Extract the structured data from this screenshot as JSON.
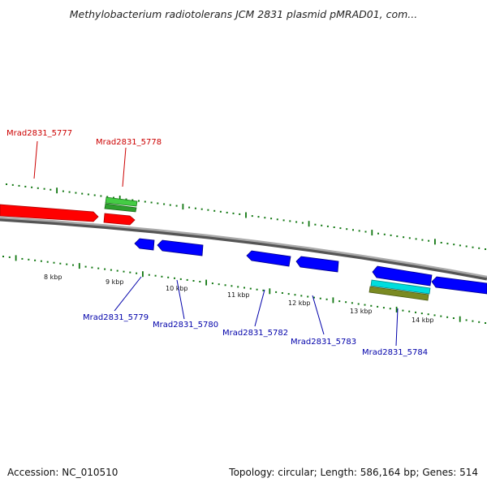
{
  "title": "Methylobacterium radiotolerans JCM 2831 plasmid pMRAD01, com...",
  "footer": {
    "accession": "Accession: NC_010510",
    "summary": "Topology: circular; Length: 586,164 bp; Genes: 514"
  },
  "colors": {
    "forward_gene": "#ff0000",
    "reverse_gene": "#0000ff",
    "rna_green": "#33aa33",
    "cyan_feature": "#00cccc",
    "olive_feature": "#778822",
    "backbone": "#888888",
    "ticks": "#117711",
    "label_forward": "#cc0000",
    "label_reverse": "#0000aa"
  },
  "scale_labels": [
    "8 kbp",
    "9 kbp",
    "10 kbp",
    "11 kbp",
    "12 kbp",
    "13 kbp",
    "14 kbp"
  ],
  "gene_labels": {
    "forward": [
      "Mrad2831_5777",
      "Mrad2831_5778"
    ],
    "reverse": [
      "Mrad2831_5779",
      "Mrad2831_5780",
      "Mrad2831_5782",
      "Mrad2831_5783",
      "Mrad2831_5784"
    ]
  }
}
